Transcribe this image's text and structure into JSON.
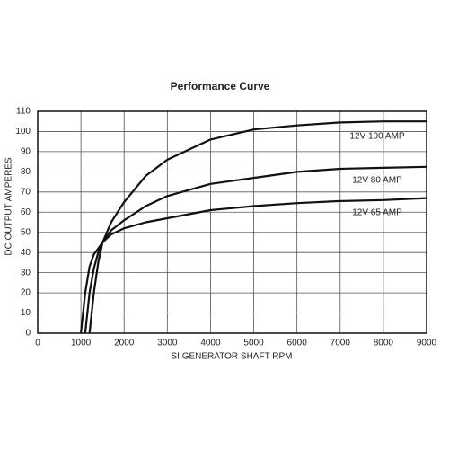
{
  "chart_data": {
    "type": "line",
    "title": "Performance Curve",
    "x_label": "SI GENERATOR SHAFT RPM",
    "y_label": "DC OUTPUT AMPERES",
    "x": [
      1000,
      1100,
      1200,
      1300,
      1400,
      1500,
      1700,
      2000,
      2500,
      3000,
      4000,
      5000,
      6000,
      7000,
      8000,
      9000
    ],
    "series": [
      {
        "name": "12V 100 AMP",
        "color": "#111111",
        "values": [
          null,
          null,
          0,
          20,
          35,
          45,
          55,
          65,
          78,
          86,
          96,
          101,
          103,
          104.5,
          105,
          105
        ]
      },
      {
        "name": "12V 80 AMP",
        "color": "#111111",
        "values": [
          null,
          0,
          20,
          32,
          40,
          45,
          51,
          56,
          63,
          68,
          74,
          77,
          80,
          81.5,
          82,
          82.5
        ]
      },
      {
        "name": "12V 65 AMP",
        "color": "#111111",
        "values": [
          0,
          20,
          33,
          39,
          42,
          45,
          49,
          52,
          55,
          57,
          61,
          63,
          64.5,
          65.5,
          66,
          67
        ]
      }
    ],
    "xlim": [
      0,
      9000
    ],
    "ylim": [
      0,
      110
    ],
    "xticks": [
      0,
      1000,
      2000,
      3000,
      4000,
      5000,
      6000,
      7000,
      8000,
      9000
    ],
    "yticks": [
      0,
      10,
      20,
      30,
      40,
      50,
      60,
      70,
      80,
      90,
      100,
      110
    ],
    "grid": true
  }
}
